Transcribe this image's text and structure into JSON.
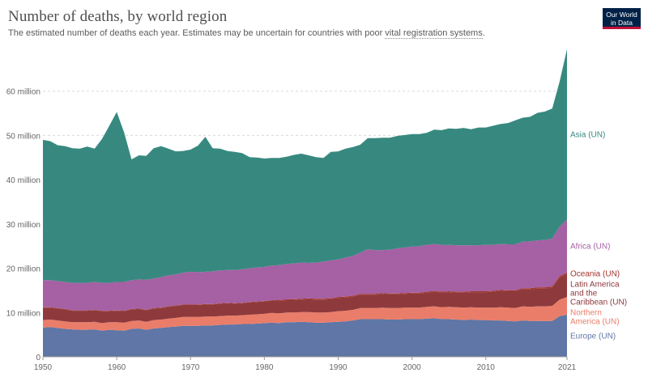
{
  "header": {
    "title": "Number of deaths, by world region",
    "subtitle_pre": "The estimated number of deaths each year. Estimates may be uncertain for countries with poor ",
    "subtitle_link": "vital registration systems",
    "subtitle_post": ".",
    "logo_line1": "Our World",
    "logo_line2": "in Data"
  },
  "colors": {
    "europe": "#5f76a6",
    "northern_america": "#ea7d69",
    "latin_america": "#8e3a3c",
    "oceania": "#a3342d",
    "africa": "#a561a3",
    "asia": "#37897f",
    "grid": "#d9d9d9",
    "axis_text": "#666666"
  },
  "chart_data": {
    "type": "area",
    "stacked": true,
    "x": [
      1950,
      1951,
      1952,
      1953,
      1954,
      1955,
      1956,
      1957,
      1958,
      1959,
      1960,
      1961,
      1962,
      1963,
      1964,
      1965,
      1966,
      1967,
      1968,
      1969,
      1970,
      1971,
      1972,
      1973,
      1974,
      1975,
      1976,
      1977,
      1978,
      1979,
      1980,
      1981,
      1982,
      1983,
      1984,
      1985,
      1986,
      1987,
      1988,
      1989,
      1990,
      1991,
      1992,
      1993,
      1994,
      1995,
      1996,
      1997,
      1998,
      1999,
      2000,
      2001,
      2002,
      2003,
      2004,
      2005,
      2006,
      2007,
      2008,
      2009,
      2010,
      2011,
      2012,
      2013,
      2014,
      2015,
      2016,
      2017,
      2018,
      2019,
      2020,
      2021
    ],
    "xticks": [
      "1950",
      "1960",
      "1970",
      "1980",
      "1990",
      "2000",
      "2010",
      "2021"
    ],
    "ylim": [
      0,
      70
    ],
    "yticks": [
      {
        "value": 0,
        "label": "0"
      },
      {
        "value": 10,
        "label": "10 million"
      },
      {
        "value": 20,
        "label": "20 million"
      },
      {
        "value": 30,
        "label": "30 million"
      },
      {
        "value": 40,
        "label": "40 million"
      },
      {
        "value": 50,
        "label": "50 million"
      },
      {
        "value": 60,
        "label": "60 million"
      }
    ],
    "grid": true,
    "legend": "right-inline",
    "series": [
      {
        "name": "Europe (UN)",
        "color_key": "europe",
        "values": [
          6.6,
          6.7,
          6.5,
          6.3,
          6.2,
          6.1,
          6.1,
          6.2,
          5.9,
          6.1,
          6.0,
          5.9,
          6.3,
          6.4,
          6.1,
          6.4,
          6.5,
          6.7,
          6.8,
          7.0,
          7.0,
          7.0,
          7.1,
          7.1,
          7.2,
          7.3,
          7.3,
          7.4,
          7.4,
          7.5,
          7.6,
          7.7,
          7.6,
          7.8,
          7.8,
          7.9,
          7.8,
          7.7,
          7.7,
          7.8,
          7.9,
          8.0,
          8.2,
          8.5,
          8.5,
          8.5,
          8.5,
          8.4,
          8.4,
          8.5,
          8.5,
          8.5,
          8.6,
          8.7,
          8.5,
          8.5,
          8.4,
          8.3,
          8.4,
          8.3,
          8.3,
          8.2,
          8.2,
          8.1,
          8.0,
          8.2,
          8.1,
          8.1,
          8.1,
          8.1,
          9.2,
          9.5
        ]
      },
      {
        "name": "Northern America (UN)",
        "color_key": "northern_america",
        "values": [
          1.7,
          1.7,
          1.7,
          1.7,
          1.6,
          1.7,
          1.7,
          1.7,
          1.7,
          1.7,
          1.8,
          1.8,
          1.8,
          1.8,
          1.8,
          1.9,
          1.9,
          1.9,
          2.0,
          2.0,
          2.0,
          2.0,
          2.0,
          2.0,
          2.0,
          2.0,
          2.0,
          2.0,
          2.1,
          2.1,
          2.1,
          2.2,
          2.2,
          2.2,
          2.2,
          2.2,
          2.3,
          2.3,
          2.3,
          2.3,
          2.4,
          2.4,
          2.4,
          2.5,
          2.5,
          2.5,
          2.6,
          2.6,
          2.6,
          2.6,
          2.6,
          2.6,
          2.7,
          2.7,
          2.7,
          2.8,
          2.8,
          2.8,
          2.8,
          2.8,
          2.8,
          2.9,
          3.0,
          3.0,
          3.0,
          3.2,
          3.2,
          3.3,
          3.3,
          3.4,
          3.7,
          4.0
        ]
      },
      {
        "name": "Latin America and the Caribbean (UN)",
        "color_key": "latin_america",
        "values": [
          2.8,
          2.7,
          2.7,
          2.7,
          2.6,
          2.6,
          2.6,
          2.6,
          2.7,
          2.5,
          2.6,
          2.6,
          2.6,
          2.6,
          2.6,
          2.6,
          2.6,
          2.7,
          2.7,
          2.7,
          2.7,
          2.7,
          2.7,
          2.7,
          2.8,
          2.8,
          2.7,
          2.7,
          2.8,
          2.8,
          2.8,
          2.8,
          2.8,
          2.8,
          2.8,
          2.8,
          2.9,
          2.9,
          2.9,
          2.9,
          3.0,
          3.0,
          3.0,
          3.0,
          3.0,
          3.0,
          3.1,
          3.1,
          3.1,
          3.1,
          3.2,
          3.2,
          3.2,
          3.3,
          3.3,
          3.3,
          3.3,
          3.4,
          3.4,
          3.5,
          3.5,
          3.6,
          3.7,
          3.7,
          3.8,
          3.8,
          3.9,
          4.0,
          4.0,
          4.1,
          5.0,
          5.2
        ]
      },
      {
        "name": "Oceania (UN)",
        "color_key": "oceania",
        "values": [
          0.1,
          0.1,
          0.1,
          0.1,
          0.1,
          0.1,
          0.1,
          0.1,
          0.1,
          0.1,
          0.1,
          0.1,
          0.1,
          0.1,
          0.1,
          0.1,
          0.1,
          0.1,
          0.1,
          0.1,
          0.1,
          0.1,
          0.1,
          0.1,
          0.1,
          0.1,
          0.1,
          0.1,
          0.1,
          0.1,
          0.1,
          0.1,
          0.2,
          0.2,
          0.2,
          0.2,
          0.2,
          0.2,
          0.2,
          0.2,
          0.2,
          0.2,
          0.2,
          0.2,
          0.2,
          0.2,
          0.2,
          0.2,
          0.2,
          0.2,
          0.2,
          0.2,
          0.2,
          0.2,
          0.2,
          0.2,
          0.2,
          0.2,
          0.2,
          0.2,
          0.2,
          0.2,
          0.2,
          0.2,
          0.2,
          0.3,
          0.3,
          0.3,
          0.3,
          0.3,
          0.3,
          0.3
        ]
      },
      {
        "name": "Africa (UN)",
        "color_key": "africa",
        "values": [
          6.1,
          6.1,
          6.1,
          6.1,
          6.2,
          6.2,
          6.2,
          6.3,
          6.3,
          6.3,
          6.4,
          6.5,
          6.5,
          6.6,
          6.8,
          6.7,
          6.9,
          7.0,
          7.0,
          7.2,
          7.4,
          7.3,
          7.3,
          7.4,
          7.4,
          7.4,
          7.5,
          7.6,
          7.6,
          7.7,
          7.7,
          7.8,
          7.9,
          8.0,
          8.1,
          8.2,
          8.0,
          8.2,
          8.4,
          8.6,
          8.5,
          8.8,
          9.0,
          9.3,
          10.1,
          9.9,
          9.7,
          9.9,
          10.2,
          10.3,
          10.4,
          10.5,
          10.6,
          10.6,
          10.6,
          10.5,
          10.5,
          10.5,
          10.4,
          10.4,
          10.5,
          10.4,
          10.4,
          10.4,
          10.4,
          10.5,
          10.6,
          10.6,
          10.7,
          10.8,
          11.2,
          12.0
        ]
      },
      {
        "name": "Asia (UN)",
        "color_key": "asia",
        "values": [
          31.7,
          31.4,
          30.7,
          30.7,
          30.4,
          30.3,
          30.8,
          30.1,
          32.5,
          35.5,
          38.4,
          33.8,
          27.3,
          28.0,
          28.0,
          29.4,
          29.6,
          28.6,
          27.8,
          27.5,
          27.6,
          28.6,
          30.5,
          27.8,
          27.5,
          26.9,
          26.7,
          26.2,
          25.1,
          24.8,
          24.5,
          24.3,
          24.2,
          24.2,
          24.5,
          24.6,
          24.3,
          23.8,
          23.4,
          24.5,
          24.4,
          24.6,
          24.6,
          24.4,
          25.1,
          25.3,
          25.4,
          25.3,
          25.4,
          25.4,
          25.4,
          25.3,
          25.3,
          25.8,
          25.9,
          26.3,
          26.3,
          26.5,
          26.2,
          26.6,
          26.5,
          26.9,
          27.1,
          27.4,
          28.0,
          28.0,
          28.1,
          28.8,
          29.0,
          29.4,
          32.8,
          38.5
        ]
      }
    ]
  }
}
